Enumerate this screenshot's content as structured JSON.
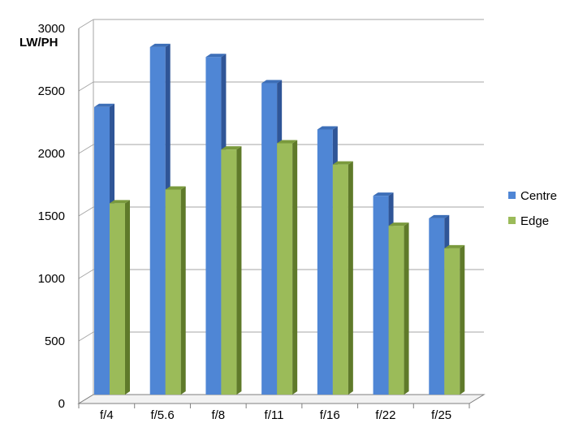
{
  "chart_data": {
    "type": "bar",
    "title": "",
    "xlabel": "",
    "ylabel": "LW/PH",
    "categories": [
      "f/4",
      "f/5.6",
      "f/8",
      "f/11",
      "f/16",
      "f/22",
      "f/25"
    ],
    "series": [
      {
        "name": "Centre",
        "values": [
          2300,
          2780,
          2700,
          2490,
          2120,
          1590,
          1410
        ]
      },
      {
        "name": "Edge",
        "values": [
          1530,
          1640,
          1960,
          2010,
          1840,
          1350,
          1170
        ]
      }
    ],
    "ylim": [
      0,
      3000
    ],
    "yticks": [
      0,
      500,
      1000,
      1500,
      2000,
      2500,
      3000
    ],
    "grid": true,
    "legend_position": "right",
    "style": "3d-clustered-column",
    "colors": {
      "Centre": {
        "front": "#4f86d5",
        "side": "#2f5597",
        "top": "#3d6fb8"
      },
      "Edge": {
        "front": "#9bbb59",
        "side": "#5f7a2a",
        "top": "#7a9a3d"
      },
      "grid": "#a6a6a6",
      "axis": "#7f7f7f"
    }
  }
}
